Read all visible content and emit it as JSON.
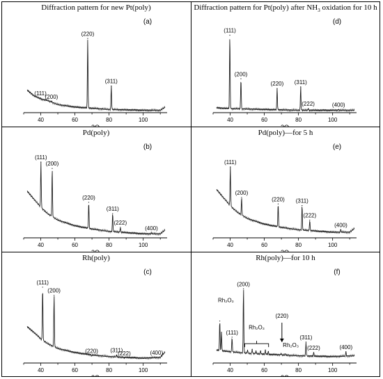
{
  "figure": {
    "x_axis_label": "2Θ",
    "panels": [
      {
        "id": "a",
        "header": "Diffraction pattern for new Pt(poly)",
        "label": "(a)",
        "chart_data": {
          "type": "line",
          "title": "Diffraction pattern for new Pt(poly)",
          "xlabel": "2Θ",
          "ylabel": "",
          "xlim": [
            30,
            114
          ],
          "ylim": [
            0,
            100
          ],
          "xticks": [
            40,
            60,
            80,
            100
          ],
          "background": [
            [
              32,
              28
            ],
            [
              36,
              21
            ],
            [
              40,
              17
            ],
            [
              44,
              15
            ],
            [
              50,
              10
            ],
            [
              60,
              7
            ],
            [
              80,
              4
            ],
            [
              100,
              3
            ],
            [
              110,
              3
            ],
            [
              113,
              7
            ]
          ],
          "peaks": [
            {
              "x": 39.8,
              "y": 18,
              "label": "(111)"
            },
            {
              "x": 46.3,
              "y": 14,
              "label": "(200)"
            },
            {
              "x": 67.5,
              "y": 92,
              "label": "(220)"
            },
            {
              "x": 81.3,
              "y": 33,
              "label": "(311)"
            }
          ]
        }
      },
      {
        "id": "d",
        "header_html_main": "Diffraction pattern for Pt(poly) after NH",
        "header_sub": "3",
        "header_tail": " oxidation for 10 h",
        "label": "(d)",
        "chart_data": {
          "type": "line",
          "title": "Diffraction pattern for Pt(poly) after NH3 oxidation for 10 h",
          "xlabel": "2Θ",
          "ylabel": "",
          "xlim": [
            30,
            114
          ],
          "ylim": [
            0,
            100
          ],
          "xticks": [
            40,
            60,
            80,
            100
          ],
          "background": [
            [
              32,
              6
            ],
            [
              40,
              5
            ],
            [
              60,
              4
            ],
            [
              80,
              3
            ],
            [
              100,
              3
            ],
            [
              113,
              3
            ]
          ],
          "peaks": [
            {
              "x": 39.8,
              "y": 96,
              "label": "(111)"
            },
            {
              "x": 46.3,
              "y": 42,
              "label": "(200)"
            },
            {
              "x": 67.5,
              "y": 30,
              "label": "(220)"
            },
            {
              "x": 81.3,
              "y": 32,
              "label": "(311)"
            },
            {
              "x": 85.7,
              "y": 5,
              "label": "(222)"
            },
            {
              "x": 103.5,
              "y": 4,
              "label": "(400)"
            }
          ]
        }
      },
      {
        "id": "b",
        "header": "Pd(poly)",
        "label": "(b)",
        "chart_data": {
          "type": "line",
          "title": "Pd(poly)",
          "xlabel": "2Θ",
          "ylabel": "",
          "xlim": [
            30,
            114
          ],
          "ylim": [
            0,
            100
          ],
          "xticks": [
            40,
            60,
            80,
            100
          ],
          "background": [
            [
              32,
              58
            ],
            [
              36,
              48
            ],
            [
              40,
              38
            ],
            [
              44,
              30
            ],
            [
              50,
              22
            ],
            [
              60,
              15
            ],
            [
              70,
              11
            ],
            [
              80,
              8
            ],
            [
              100,
              5
            ],
            [
              110,
              5
            ],
            [
              113,
              10
            ]
          ],
          "peaks": [
            {
              "x": 40.1,
              "y": 94,
              "label": "(111)"
            },
            {
              "x": 46.7,
              "y": 86,
              "label": "(200)"
            },
            {
              "x": 68.1,
              "y": 44,
              "label": "(220)"
            },
            {
              "x": 82.1,
              "y": 30,
              "label": "(311)"
            },
            {
              "x": 86.6,
              "y": 13,
              "label": "(222)"
            },
            {
              "x": 104.8,
              "y": 6,
              "label": "(400)"
            }
          ]
        }
      },
      {
        "id": "e",
        "header": "Pd(poly)—for 5 h",
        "label": "(e)",
        "chart_data": {
          "type": "line",
          "title": "Pd(poly)—for 5 h",
          "xlabel": "2Θ",
          "ylabel": "",
          "xlim": [
            30,
            114
          ],
          "ylim": [
            0,
            100
          ],
          "xticks": [
            40,
            60,
            80,
            100
          ],
          "background": [
            [
              32,
              60
            ],
            [
              36,
              50
            ],
            [
              40,
              40
            ],
            [
              44,
              32
            ],
            [
              50,
              24
            ],
            [
              60,
              17
            ],
            [
              70,
              13
            ],
            [
              80,
              10
            ],
            [
              100,
              7
            ],
            [
              110,
              7
            ],
            [
              113,
              12
            ]
          ],
          "peaks": [
            {
              "x": 40.1,
              "y": 88,
              "label": "(111)"
            },
            {
              "x": 46.7,
              "y": 50,
              "label": "(200)"
            },
            {
              "x": 68.1,
              "y": 42,
              "label": "(220)"
            },
            {
              "x": 82.1,
              "y": 40,
              "label": "(311)"
            },
            {
              "x": 86.6,
              "y": 22,
              "label": "(222)"
            },
            {
              "x": 104.8,
              "y": 10,
              "label": "(400)"
            }
          ]
        }
      },
      {
        "id": "c",
        "header": "Rh(poly)",
        "label": "(c)",
        "chart_data": {
          "type": "line",
          "title": "Rh(poly)",
          "xlabel": "2Θ",
          "ylabel": "",
          "xlim": [
            30,
            114
          ],
          "ylim": [
            0,
            100
          ],
          "xticks": [
            40,
            60,
            80,
            100
          ],
          "background": [
            [
              32,
              45
            ],
            [
              36,
              38
            ],
            [
              40,
              30
            ],
            [
              44,
              24
            ],
            [
              50,
              18
            ],
            [
              60,
              13
            ],
            [
              70,
              10
            ],
            [
              80,
              8
            ],
            [
              100,
              6
            ],
            [
              110,
              7
            ],
            [
              113,
              14
            ]
          ],
          "peaks": [
            {
              "x": 41.1,
              "y": 94,
              "label": "(111)"
            },
            {
              "x": 47.8,
              "y": 84,
              "label": "(200)"
            },
            {
              "x": 69.8,
              "y": 9,
              "label": "(220)"
            },
            {
              "x": 84.4,
              "y": 10,
              "label": "(311)"
            },
            {
              "x": 88.9,
              "y": 6,
              "label": "(222)"
            },
            {
              "x": 107.8,
              "y": 7,
              "label": "(400)"
            }
          ]
        }
      },
      {
        "id": "f",
        "header": "Rh(poly)—for 10 h",
        "label": "(f)",
        "chart_data": {
          "type": "line",
          "title": "Rh(poly)—for 10 h",
          "xlabel": "2Θ",
          "ylabel": "",
          "xlim": [
            30,
            114
          ],
          "ylim": [
            0,
            100
          ],
          "xticks": [
            40,
            60,
            80,
            100
          ],
          "background": [
            [
              32,
              16
            ],
            [
              40,
              14
            ],
            [
              50,
              12
            ],
            [
              60,
              11
            ],
            [
              80,
              9
            ],
            [
              100,
              8
            ],
            [
              113,
              9
            ]
          ],
          "peaks": [
            {
              "x": 33.9,
              "y": 52,
              "label": "Rh₂O₃",
              "label_x": 37.5,
              "label_y": 72
            },
            {
              "x": 34.9,
              "y": 38,
              "label": ""
            },
            {
              "x": 41.1,
              "y": 32,
              "label": "(111)"
            },
            {
              "x": 47.8,
              "y": 92,
              "label": "(200)"
            },
            {
              "x": 50.2,
              "y": 16,
              "label": ""
            },
            {
              "x": 52.9,
              "y": 17,
              "label": ""
            },
            {
              "x": 55.1,
              "y": 15,
              "label": ""
            },
            {
              "x": 57.8,
              "y": 15,
              "label": ""
            },
            {
              "x": 60.6,
              "y": 16,
              "label": ""
            },
            {
              "x": 62.3,
              "y": 14,
              "label": ""
            },
            {
              "x": 69.8,
              "y": 12,
              "label": ""
            },
            {
              "x": 72.2,
              "y": 11,
              "label": ""
            },
            {
              "x": 74.0,
              "y": 10,
              "label": ""
            },
            {
              "x": 84.4,
              "y": 26,
              "label": "(311)"
            },
            {
              "x": 88.9,
              "y": 13,
              "label": "(222)"
            },
            {
              "x": 107.8,
              "y": 14,
              "label": "(400)"
            }
          ],
          "annotations": [
            {
              "type": "bracket",
              "x1": 48.5,
              "x2": 62.5,
              "y": 24,
              "label": "Rh₂O₃",
              "label_x": 55.5,
              "label_y": 42
            },
            {
              "type": "arrow",
              "x": 70.3,
              "y_from": 50,
              "y_to": 26,
              "label": "(220)",
              "label_y": 56
            },
            {
              "type": "text",
              "x": 75.5,
              "y": 20,
              "label": "Rh₂O₃"
            }
          ]
        }
      }
    ]
  }
}
